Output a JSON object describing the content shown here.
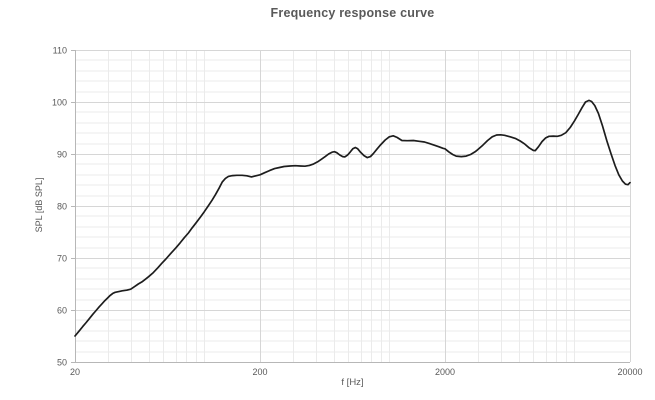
{
  "chart_data": {
    "type": "line",
    "title": "Frequency response curve",
    "xlabel": "f [Hz]",
    "ylabel": "SPL [dB SPL]",
    "x_scale": "log",
    "xlim": [
      20,
      20000
    ],
    "ylim": [
      50,
      110
    ],
    "x_ticks": [
      20,
      200,
      2000,
      20000
    ],
    "y_ticks": [
      50,
      60,
      70,
      80,
      90,
      100,
      110
    ],
    "y_minor_step": 2,
    "grid": true,
    "legend": false,
    "colors": {
      "line": "#1d1d1d",
      "grid_minor": "#ebebeb",
      "grid_major": "#d6d6d6",
      "axis": "#b7b7b7",
      "text": "#595959"
    },
    "series": [
      {
        "name": "SPL",
        "points": [
          [
            20,
            55.0
          ],
          [
            21,
            55.9
          ],
          [
            22,
            56.8
          ],
          [
            23,
            57.6
          ],
          [
            24,
            58.4
          ],
          [
            25,
            59.2
          ],
          [
            26,
            59.9
          ],
          [
            27,
            60.6
          ],
          [
            28,
            61.2
          ],
          [
            29,
            61.8
          ],
          [
            30,
            62.3
          ],
          [
            31,
            62.8
          ],
          [
            32,
            63.2
          ],
          [
            33,
            63.4
          ],
          [
            34,
            63.5
          ],
          [
            35,
            63.6
          ],
          [
            36,
            63.7
          ],
          [
            38,
            63.8
          ],
          [
            40,
            64.0
          ],
          [
            42,
            64.5
          ],
          [
            44,
            65.0
          ],
          [
            46,
            65.4
          ],
          [
            48,
            65.9
          ],
          [
            50,
            66.4
          ],
          [
            53,
            67.2
          ],
          [
            56,
            68.1
          ],
          [
            59,
            69.0
          ],
          [
            62,
            69.8
          ],
          [
            66,
            70.9
          ],
          [
            70,
            71.9
          ],
          [
            74,
            72.9
          ],
          [
            78,
            73.9
          ],
          [
            82,
            74.8
          ],
          [
            86,
            75.8
          ],
          [
            90,
            76.7
          ],
          [
            95,
            77.8
          ],
          [
            100,
            78.9
          ],
          [
            105,
            80.0
          ],
          [
            110,
            81.1
          ],
          [
            115,
            82.2
          ],
          [
            120,
            83.4
          ],
          [
            125,
            84.6
          ],
          [
            130,
            85.3
          ],
          [
            135,
            85.7
          ],
          [
            142,
            85.85
          ],
          [
            150,
            85.9
          ],
          [
            160,
            85.9
          ],
          [
            170,
            85.8
          ],
          [
            180,
            85.6
          ],
          [
            190,
            85.8
          ],
          [
            200,
            86.0
          ],
          [
            212,
            86.4
          ],
          [
            225,
            86.8
          ],
          [
            240,
            87.2
          ],
          [
            255,
            87.4
          ],
          [
            270,
            87.6
          ],
          [
            290,
            87.7
          ],
          [
            310,
            87.75
          ],
          [
            330,
            87.7
          ],
          [
            350,
            87.65
          ],
          [
            370,
            87.8
          ],
          [
            390,
            88.1
          ],
          [
            410,
            88.5
          ],
          [
            430,
            89.0
          ],
          [
            450,
            89.5
          ],
          [
            470,
            90.0
          ],
          [
            490,
            90.35
          ],
          [
            505,
            90.45
          ],
          [
            520,
            90.25
          ],
          [
            540,
            89.8
          ],
          [
            560,
            89.5
          ],
          [
            575,
            89.45
          ],
          [
            595,
            89.8
          ],
          [
            615,
            90.4
          ],
          [
            635,
            91.0
          ],
          [
            655,
            91.25
          ],
          [
            675,
            91.0
          ],
          [
            700,
            90.3
          ],
          [
            730,
            89.7
          ],
          [
            760,
            89.3
          ],
          [
            790,
            89.5
          ],
          [
            820,
            90.1
          ],
          [
            860,
            91.0
          ],
          [
            900,
            91.8
          ],
          [
            950,
            92.7
          ],
          [
            1000,
            93.3
          ],
          [
            1050,
            93.5
          ],
          [
            1100,
            93.2
          ],
          [
            1170,
            92.6
          ],
          [
            1250,
            92.55
          ],
          [
            1350,
            92.6
          ],
          [
            1450,
            92.45
          ],
          [
            1550,
            92.3
          ],
          [
            1650,
            92.0
          ],
          [
            1750,
            91.7
          ],
          [
            1850,
            91.4
          ],
          [
            1950,
            91.1
          ],
          [
            2000,
            91.0
          ],
          [
            2100,
            90.4
          ],
          [
            2200,
            89.9
          ],
          [
            2300,
            89.6
          ],
          [
            2450,
            89.5
          ],
          [
            2600,
            89.6
          ],
          [
            2750,
            89.9
          ],
          [
            2900,
            90.4
          ],
          [
            3000,
            90.8
          ],
          [
            3200,
            91.7
          ],
          [
            3400,
            92.6
          ],
          [
            3600,
            93.3
          ],
          [
            3800,
            93.65
          ],
          [
            4000,
            93.7
          ],
          [
            4200,
            93.6
          ],
          [
            4500,
            93.3
          ],
          [
            4800,
            93.0
          ],
          [
            5100,
            92.5
          ],
          [
            5400,
            91.9
          ],
          [
            5700,
            91.2
          ],
          [
            6000,
            90.7
          ],
          [
            6150,
            90.65
          ],
          [
            6400,
            91.4
          ],
          [
            6700,
            92.4
          ],
          [
            7000,
            93.1
          ],
          [
            7300,
            93.4
          ],
          [
            7700,
            93.45
          ],
          [
            8100,
            93.4
          ],
          [
            8500,
            93.6
          ],
          [
            9000,
            94.1
          ],
          [
            9500,
            95.1
          ],
          [
            10000,
            96.3
          ],
          [
            10500,
            97.6
          ],
          [
            11000,
            98.9
          ],
          [
            11500,
            100.0
          ],
          [
            12000,
            100.3
          ],
          [
            12400,
            100.1
          ],
          [
            12900,
            99.3
          ],
          [
            13500,
            97.8
          ],
          [
            14200,
            95.4
          ],
          [
            15000,
            92.5
          ],
          [
            15800,
            90.0
          ],
          [
            16600,
            87.8
          ],
          [
            17400,
            86.0
          ],
          [
            18200,
            84.8
          ],
          [
            18900,
            84.2
          ],
          [
            19500,
            84.1
          ],
          [
            20000,
            84.5
          ]
        ]
      }
    ]
  }
}
